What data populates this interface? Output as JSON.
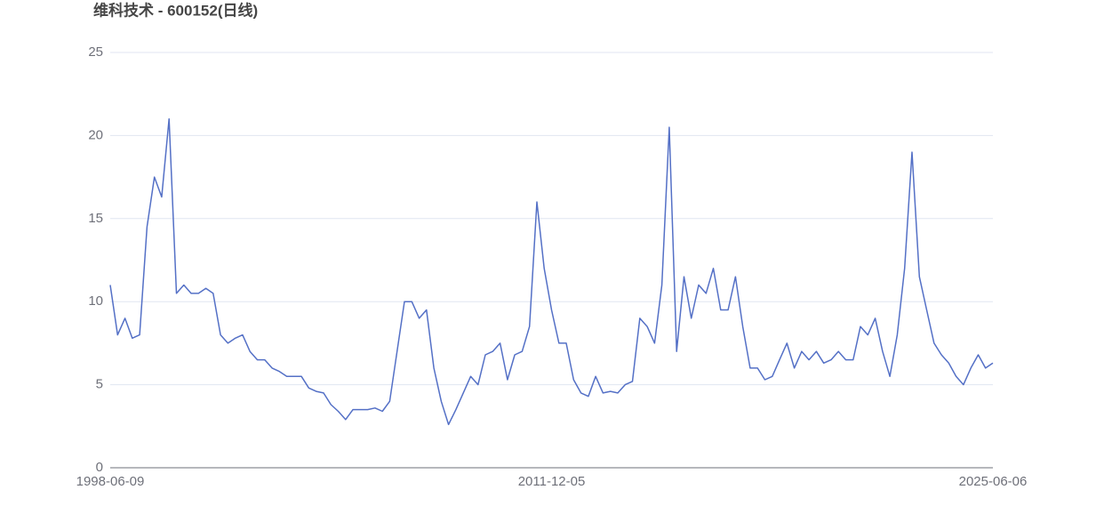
{
  "chart_data": {
    "type": "line",
    "title": "维科技术 - 600152(日线)",
    "categories": [
      "1998-06-09",
      null,
      null,
      null,
      null,
      null,
      null,
      null,
      null,
      null,
      null,
      null,
      null,
      null,
      null,
      null,
      null,
      null,
      null,
      null,
      null,
      null,
      null,
      null,
      null,
      null,
      null,
      null,
      null,
      null,
      null,
      null,
      null,
      null,
      null,
      null,
      null,
      null,
      null,
      null,
      null,
      null,
      null,
      null,
      null,
      null,
      null,
      null,
      null,
      null,
      null,
      null,
      null,
      null,
      null,
      null,
      null,
      null,
      null,
      null,
      "2011-12-05",
      null,
      null,
      null,
      null,
      null,
      null,
      null,
      null,
      null,
      null,
      null,
      null,
      null,
      null,
      null,
      null,
      null,
      null,
      null,
      null,
      null,
      null,
      null,
      null,
      null,
      null,
      null,
      null,
      null,
      null,
      null,
      null,
      null,
      null,
      null,
      null,
      null,
      null,
      null,
      null,
      null,
      null,
      null,
      null,
      null,
      null,
      null,
      null,
      null,
      null,
      null,
      null,
      null,
      null,
      null,
      null,
      null,
      null,
      null,
      "2025-06-06"
    ],
    "series": [
      {
        "name": "600152",
        "color": "#5470c6",
        "values": [
          11,
          8,
          9,
          7.8,
          8,
          14.5,
          17.5,
          16.3,
          21,
          10.5,
          11,
          10.5,
          10.5,
          10.8,
          10.5,
          8,
          7.5,
          7.8,
          8,
          7,
          6.5,
          6.5,
          6,
          5.8,
          5.5,
          5.5,
          5.5,
          4.8,
          4.6,
          4.5,
          3.8,
          3.4,
          2.9,
          3.5,
          3.5,
          3.5,
          3.6,
          3.4,
          4,
          7,
          10,
          10,
          9,
          9.5,
          6,
          4,
          2.6,
          3.5,
          4.5,
          5.5,
          5,
          6.8,
          7,
          7.5,
          5.3,
          6.8,
          7,
          8.5,
          16,
          12,
          9.5,
          7.5,
          7.5,
          5.3,
          4.5,
          4.3,
          5.5,
          4.5,
          4.6,
          4.5,
          5,
          5.2,
          9,
          8.5,
          7.5,
          11,
          20.5,
          7,
          11.5,
          9,
          11,
          10.5,
          12,
          9.5,
          9.5,
          11.5,
          8.5,
          6,
          6,
          5.3,
          5.5,
          6.5,
          7.5,
          6,
          7,
          6.5,
          7,
          6.3,
          6.5,
          7,
          6.5,
          6.5,
          8.5,
          8,
          9,
          7,
          5.5,
          8,
          12,
          19,
          11.5,
          9.5,
          7.5,
          6.8,
          6.3,
          5.5,
          5,
          6,
          6.8,
          6,
          6.3
        ]
      }
    ],
    "ylim": [
      0,
      25
    ],
    "yticks": [
      0,
      5,
      10,
      15,
      20,
      25
    ],
    "grid": true
  }
}
